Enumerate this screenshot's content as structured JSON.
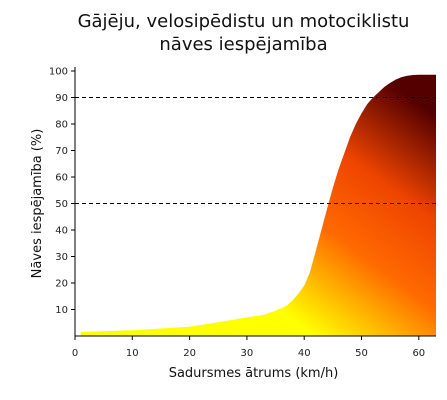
{
  "chart_data": {
    "type": "area",
    "title": [
      "Gājēju, velosipēdistu un motociklistu",
      "nāves iespējamība"
    ],
    "xlabel": "Sadursmes ātrums (km/h)",
    "ylabel": "Nāves iespējamība (%)",
    "xlim": [
      0,
      63
    ],
    "ylim": [
      0,
      100
    ],
    "x_ticks": [
      0,
      10,
      20,
      30,
      40,
      50,
      60
    ],
    "y_ticks": [
      10,
      20,
      30,
      40,
      50,
      60,
      70,
      80,
      90,
      100
    ],
    "reference_lines": [
      50,
      90
    ],
    "grid": false,
    "fill_colors": [
      "#ffff00",
      "#ff6a00",
      "#ee4400",
      "#550000"
    ],
    "series": [
      {
        "x": [
          1,
          10,
          20,
          25,
          30,
          33,
          35,
          37,
          38,
          39,
          40,
          41,
          42,
          43,
          44,
          45,
          46,
          47,
          48,
          49,
          50,
          51,
          52,
          53,
          54,
          55,
          56,
          57,
          58,
          59,
          60,
          61,
          62,
          63
        ],
        "values": [
          1.5,
          2.2,
          3.5,
          5.2,
          7.0,
          8.0,
          9.5,
          11.5,
          13.5,
          16,
          19,
          24,
          32,
          40,
          48,
          56,
          63,
          69,
          75,
          80,
          84,
          87.5,
          90,
          92,
          94,
          95.5,
          96.8,
          97.7,
          98.2,
          98.5,
          98.6,
          98.6,
          98.6,
          98.6
        ]
      }
    ]
  }
}
